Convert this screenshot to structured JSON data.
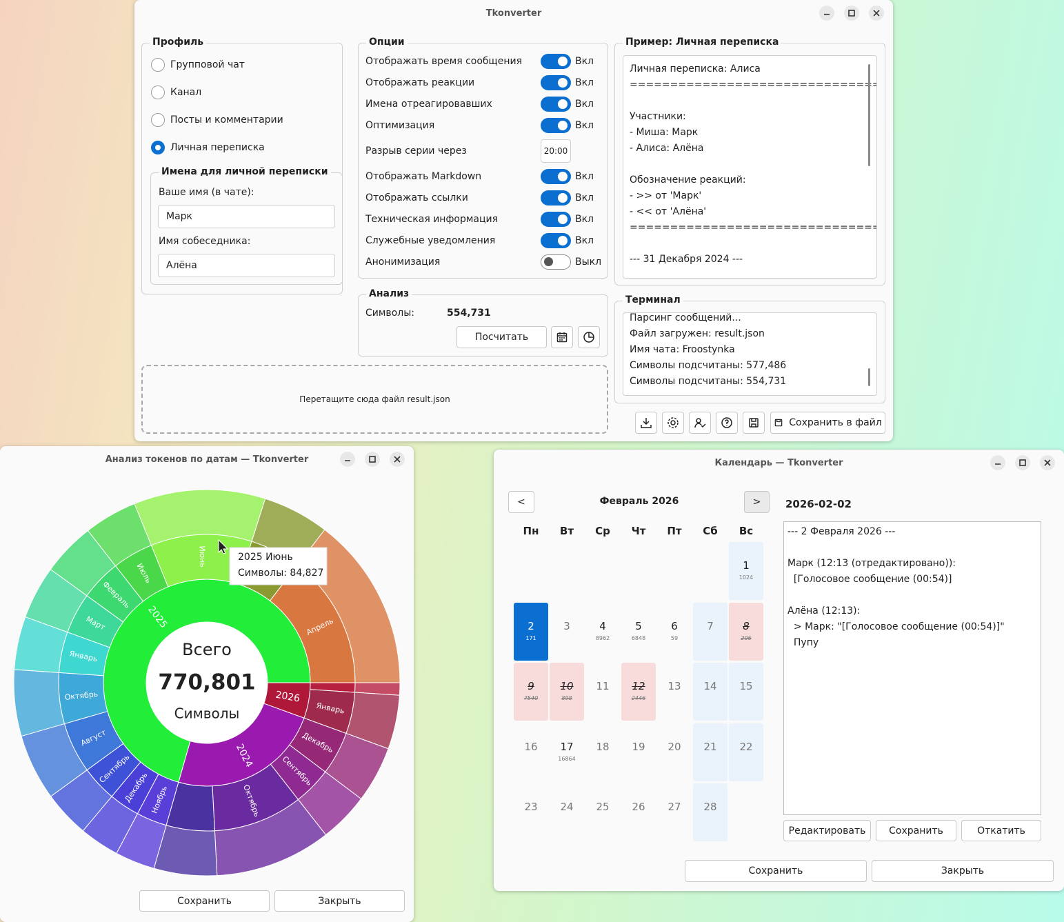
{
  "main_window": {
    "title": "Tkonverter",
    "profile": {
      "title": "Профиль",
      "options": [
        "Групповой чат",
        "Канал",
        "Посты и комментарии",
        "Личная переписка"
      ],
      "selected": 3
    },
    "names": {
      "title": "Имена для личной переписки",
      "your_name_label": "Ваше имя (в чате):",
      "your_name": "Марк",
      "partner_label": "Имя собеседника:",
      "partner_name": "Алёна"
    },
    "options": {
      "title": "Опции",
      "items": [
        {
          "label": "Отображать время сообщения",
          "on": true,
          "state": "Вкл"
        },
        {
          "label": "Отображать реакции",
          "on": true,
          "state": "Вкл"
        },
        {
          "label": "Имена отреагировавших",
          "on": true,
          "state": "Вкл"
        },
        {
          "label": "Оптимизация",
          "on": true,
          "state": "Вкл"
        },
        {
          "label": "Разрыв серии через",
          "value": "20:00"
        },
        {
          "label": "Отображать Markdown",
          "on": true,
          "state": "Вкл"
        },
        {
          "label": "Отображать ссылки",
          "on": true,
          "state": "Вкл"
        },
        {
          "label": "Техническая информация",
          "on": true,
          "state": "Вкл"
        },
        {
          "label": "Служебные уведомления",
          "on": true,
          "state": "Вкл"
        },
        {
          "label": "Анонимизация",
          "on": false,
          "state": "Выкл"
        }
      ]
    },
    "analysis": {
      "title": "Анализ",
      "chars_label": "Символы:",
      "chars": "554,731",
      "count_button": "Посчитать"
    },
    "drop_zone": "Перетащите сюда файл result.json",
    "preview": {
      "title": "Пример: Личная переписка",
      "lines": [
        "Личная переписка: Алиса",
        "=======================================",
        null,
        "Участники:",
        "- Миша: Марк",
        "- Алиса: Алёна",
        null,
        "Обозначение реакций:",
        "- >> от 'Марк'",
        "- << от 'Алёна'",
        "=======================================",
        null,
        "--- 31 Декабря 2024 ---"
      ]
    },
    "terminal": {
      "title": "Терминал",
      "lines": [
        "Парсинг сообщений...",
        "Файл загружен: result.json",
        "Имя чата: Froostynka",
        "Символы подсчитаны: 577,486",
        "Символы подсчитаны: 554,731"
      ]
    },
    "save_button": "Сохранить в файл"
  },
  "chart_window": {
    "title": "Анализ токенов по датам — Tkonverter",
    "buttons": [
      "Сохранить",
      "Закрыть"
    ]
  },
  "chart_data": {
    "type": "sunburst",
    "center_title": "Всего",
    "total": 770801,
    "total_label": "770,801",
    "center_unit": "Символы",
    "tooltip": [
      "2025 Июнь",
      "Символы: 84,827"
    ],
    "series": [
      {
        "name": "2026",
        "color": "#b0183a",
        "value": 42800,
        "months": {
          "categories": [
            null,
            "Январь"
          ],
          "values": [
            8000,
            34800
          ],
          "colors": [
            "#b82040",
            "#9e2a4c"
          ]
        }
      },
      {
        "name": "2024",
        "color": "#9a1ab0",
        "value": 183974,
        "months": {
          "categories": [
            "Декабрь",
            "Сентябрь",
            "Октябрь",
            null
          ],
          "values": [
            36400,
            32100,
            74900,
            40574
          ],
          "colors": [
            "#962878",
            "#8e2a92",
            "#6a2aa0",
            "#4a32a0"
          ]
        }
      },
      {
        "name": "2025",
        "color": "#22ee3a",
        "value": 544027,
        "months": {
          "categories": [
            "Ноябрь",
            "Декабрь",
            "Сентябрь",
            "Август",
            "Октябрь",
            "Январь",
            "Март",
            "Февраль",
            "Июль",
            "Июнь",
            null,
            "Апрель"
          ],
          "values": [
            25700,
            25700,
            30000,
            42800,
            42800,
            34300,
            34300,
            34300,
            34300,
            84827,
            42800,
            112200
          ],
          "colors": [
            "#5a3ed8",
            "#4a40d8",
            "#3e52d8",
            "#3e78d8",
            "#3ea8d8",
            "#3ed8d0",
            "#3ed89a",
            "#3ed870",
            "#4ad84a",
            "#8ef04a",
            "#8a9a30",
            "#d87840"
          ]
        }
      }
    ]
  },
  "calendar_window": {
    "title": "Календарь — Tkonverter",
    "prev": "<",
    "next": ">",
    "month_title": "Февраль 2026",
    "weekdays": [
      "Пн",
      "Вт",
      "Ср",
      "Чт",
      "Пт",
      "Сб",
      "Вс"
    ],
    "weeks": [
      [
        null,
        null,
        null,
        null,
        null,
        null,
        {
          "day": 1,
          "count": 1024
        }
      ],
      [
        {
          "day": 2,
          "count": 171,
          "selected": true
        },
        {
          "day": 3
        },
        {
          "day": 4,
          "count": 8962
        },
        {
          "day": 5,
          "count": 6848
        },
        {
          "day": 6,
          "count": 59
        },
        {
          "day": 7
        },
        {
          "day": 8,
          "count": 206,
          "excluded": true
        }
      ],
      [
        {
          "day": 9,
          "count": 7540,
          "excluded": true
        },
        {
          "day": 10,
          "count": 898,
          "excluded": true
        },
        {
          "day": 11
        },
        {
          "day": 12,
          "count": 2446,
          "excluded": true
        },
        {
          "day": 13
        },
        {
          "day": 14
        },
        {
          "day": 15
        }
      ],
      [
        {
          "day": 16
        },
        {
          "day": 17,
          "count": 16864
        },
        {
          "day": 18
        },
        {
          "day": 19
        },
        {
          "day": 20
        },
        {
          "day": 21
        },
        {
          "day": 22
        }
      ],
      [
        {
          "day": 23
        },
        {
          "day": 24
        },
        {
          "day": 25
        },
        {
          "day": 26
        },
        {
          "day": 27
        },
        {
          "day": 28
        },
        null
      ]
    ],
    "selected_date": "2026-02-02",
    "day_text": [
      "--- 2 Февраля 2026 ---",
      null,
      "Марк (12:13 (отредактировано)):",
      "  [Голосовое сообщение (00:54)]",
      null,
      "Алёна (12:13):",
      "  > Марк: \"[Голосовое сообщение (00:54)]\"",
      "  Пупу"
    ],
    "edit_buttons": [
      "Редактировать",
      "Сохранить",
      "Откатить"
    ],
    "buttons": [
      "Сохранить",
      "Закрыть"
    ]
  }
}
